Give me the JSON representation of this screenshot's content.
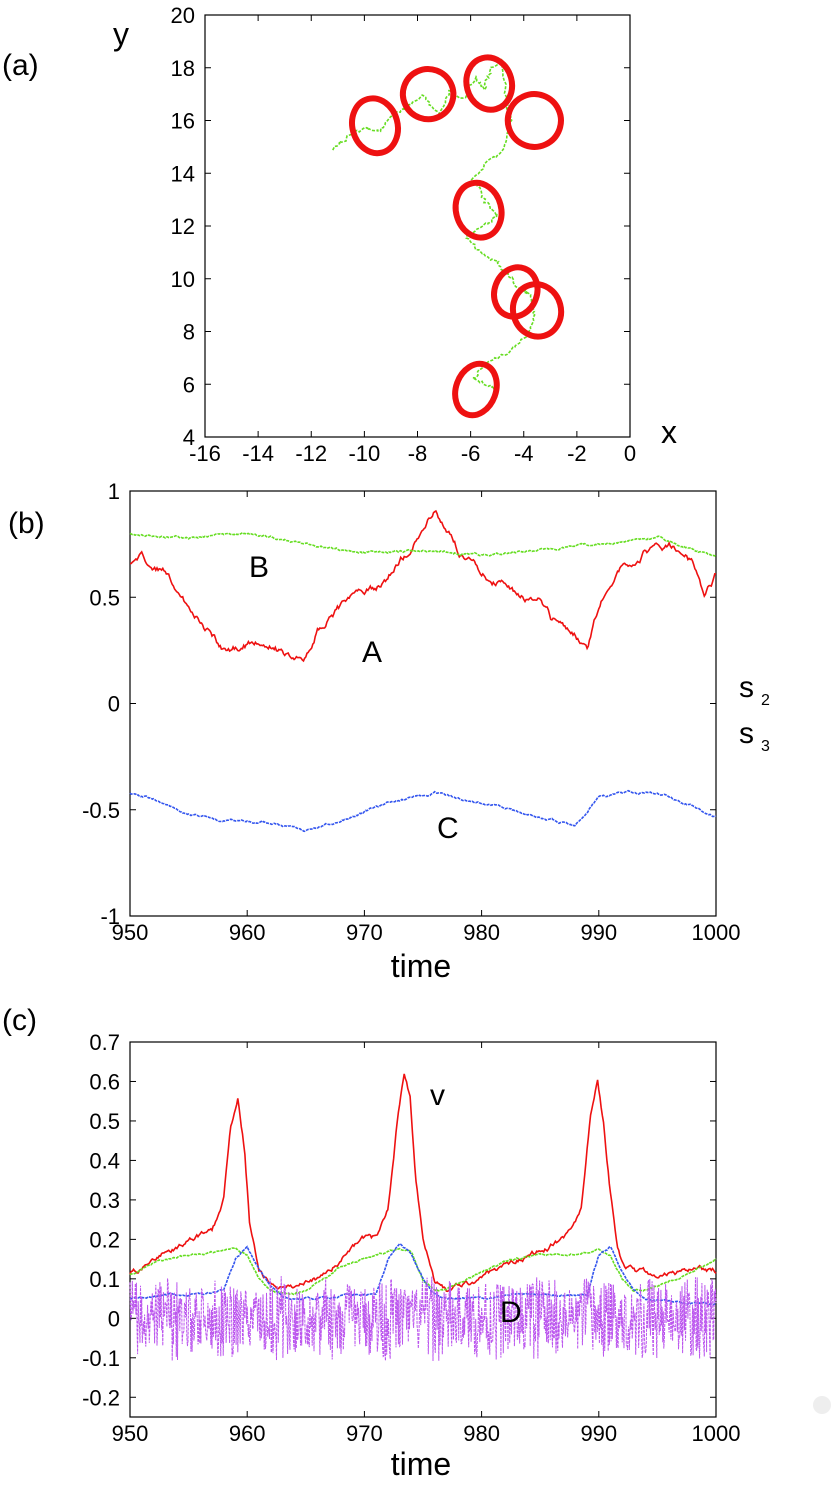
{
  "chart_data": [
    {
      "panel": "(a)",
      "type": "scatter",
      "xlabel": "x",
      "ylabel": "y",
      "xlim": [
        -16,
        0
      ],
      "ylim": [
        4,
        20
      ],
      "xticks": [
        "-16",
        "-14",
        "-12",
        "-10",
        "-8",
        "-6",
        "-4",
        "-2",
        "0"
      ],
      "yticks": [
        "4",
        "6",
        "8",
        "10",
        "12",
        "14",
        "16",
        "18",
        "20"
      ],
      "colors": {
        "loops": "#ee1111",
        "trajectory": "#66dd22"
      },
      "loops": [
        {
          "cx": -9.6,
          "cy": 15.8,
          "rx": 0.85,
          "ry": 1.05
        },
        {
          "cx": -7.6,
          "cy": 17.0,
          "rx": 0.95,
          "ry": 0.95
        },
        {
          "cx": -5.3,
          "cy": 17.4,
          "rx": 0.85,
          "ry": 1.0
        },
        {
          "cx": -3.6,
          "cy": 16.0,
          "rx": 1.0,
          "ry": 1.0
        },
        {
          "cx": -5.7,
          "cy": 12.6,
          "rx": 0.85,
          "ry": 1.05
        },
        {
          "cx": -4.3,
          "cy": 9.5,
          "rx": 0.8,
          "ry": 0.95
        },
        {
          "cx": -3.5,
          "cy": 8.8,
          "rx": 0.9,
          "ry": 1.0
        },
        {
          "cx": -5.8,
          "cy": 5.8,
          "rx": 0.75,
          "ry": 1.0
        }
      ],
      "trajectory": {
        "x": [
          -11.2,
          -10.6,
          -10.0,
          -9.4,
          -9.0,
          -8.4,
          -7.8,
          -7.2,
          -6.8,
          -6.3,
          -5.8,
          -5.5,
          -5.2,
          -4.8,
          -4.7,
          -4.5,
          -4.8,
          -5.4,
          -5.9,
          -5.5,
          -5.0,
          -5.5,
          -6.2,
          -5.6,
          -5.0,
          -4.6,
          -4.2,
          -3.8,
          -3.6,
          -3.9,
          -4.6,
          -5.4,
          -5.9,
          -5.2,
          -4.9
        ],
        "y": [
          14.9,
          15.4,
          15.7,
          15.6,
          16.2,
          16.5,
          17.0,
          16.2,
          17.1,
          16.8,
          17.6,
          17.2,
          18.0,
          18.4,
          17.0,
          16.0,
          14.9,
          14.4,
          13.8,
          13.0,
          12.4,
          12.0,
          11.6,
          11.0,
          10.6,
          10.2,
          9.7,
          9.4,
          8.6,
          7.8,
          7.2,
          6.8,
          6.2,
          5.9,
          5.8
        ]
      }
    },
    {
      "panel": "(b)",
      "type": "line",
      "xlabel": "time",
      "ylabel": "",
      "xlim": [
        950,
        1000
      ],
      "ylim": [
        -1,
        1
      ],
      "xticks": [
        "950",
        "960",
        "970",
        "980",
        "990",
        "1000"
      ],
      "yticks": [
        "-1",
        "-0.5",
        "0",
        "0.5",
        "1"
      ],
      "series": [
        {
          "name": "A",
          "color": "#ee1111",
          "x": [
            950,
            951,
            953,
            955,
            957,
            958,
            960,
            962,
            964,
            965,
            966,
            968,
            970,
            971,
            972,
            973,
            974,
            975,
            976,
            977,
            978,
            980,
            982,
            984,
            985,
            986,
            987,
            988,
            989,
            990,
            991,
            992,
            994,
            996,
            998,
            999,
            1000
          ],
          "y": [
            0.65,
            0.7,
            0.62,
            0.45,
            0.33,
            0.25,
            0.28,
            0.28,
            0.2,
            0.22,
            0.35,
            0.45,
            0.52,
            0.55,
            0.6,
            0.68,
            0.72,
            0.8,
            0.9,
            0.82,
            0.72,
            0.62,
            0.55,
            0.48,
            0.5,
            0.4,
            0.38,
            0.33,
            0.25,
            0.45,
            0.58,
            0.65,
            0.72,
            0.74,
            0.66,
            0.52,
            0.6
          ],
          "noise": 0.025
        },
        {
          "name": "B",
          "color": "#66dd22",
          "x": [
            950,
            955,
            960,
            965,
            970,
            975,
            980,
            985,
            990,
            995,
            1000
          ],
          "y": [
            0.8,
            0.78,
            0.8,
            0.75,
            0.71,
            0.72,
            0.7,
            0.72,
            0.75,
            0.78,
            0.69
          ],
          "noise": 0.008
        },
        {
          "name": "C",
          "color": "#3355ee",
          "x": [
            950,
            952,
            955,
            958,
            962,
            965,
            968,
            972,
            976,
            980,
            984,
            988,
            990,
            992,
            995,
            998,
            1000
          ],
          "y": [
            -0.42,
            -0.45,
            -0.52,
            -0.55,
            -0.56,
            -0.6,
            -0.55,
            -0.47,
            -0.42,
            -0.47,
            -0.52,
            -0.58,
            -0.44,
            -0.42,
            -0.42,
            -0.48,
            -0.53
          ],
          "noise": 0.008
        }
      ],
      "curve_labels": [
        "A",
        "B",
        "C"
      ]
    },
    {
      "panel": "(c)",
      "type": "line",
      "xlabel": "time",
      "ylabel": "",
      "xlim": [
        950,
        1000
      ],
      "ylim": [
        -0.25,
        0.7
      ],
      "xticks": [
        "950",
        "960",
        "970",
        "980",
        "990",
        "1000"
      ],
      "yticks": [
        "-0.2",
        "-0.1",
        "0",
        "0.1",
        "0.2",
        "0.3",
        "0.4",
        "0.5",
        "0.6",
        "0.7"
      ],
      "series": [
        {
          "name": "v",
          "color": "#ee1111",
          "x": [
            950,
            951,
            953,
            955,
            957,
            958,
            958.6,
            959.2,
            959.8,
            960.2,
            961,
            962,
            964,
            966,
            968,
            970,
            971,
            972,
            972.8,
            973.4,
            973.9,
            974.4,
            975,
            976,
            977,
            979,
            981,
            983,
            985,
            987,
            988.5,
            989.3,
            989.9,
            990.4,
            991,
            991.6,
            992.2,
            994,
            996,
            998,
            1000
          ],
          "y": [
            0.11,
            0.13,
            0.17,
            0.2,
            0.22,
            0.3,
            0.48,
            0.55,
            0.42,
            0.25,
            0.13,
            0.09,
            0.08,
            0.1,
            0.15,
            0.2,
            0.2,
            0.27,
            0.5,
            0.62,
            0.56,
            0.35,
            0.2,
            0.1,
            0.07,
            0.09,
            0.12,
            0.15,
            0.17,
            0.2,
            0.27,
            0.52,
            0.6,
            0.5,
            0.32,
            0.18,
            0.12,
            0.11,
            0.11,
            0.12,
            0.12
          ],
          "noise": 0.01
        },
        {
          "name": "s_2",
          "color": "#66dd22",
          "x": [
            950,
            952,
            955,
            958,
            959,
            960,
            961,
            962,
            964,
            966,
            968,
            971,
            972,
            973,
            974,
            975,
            976,
            977,
            980,
            983,
            986,
            989,
            990,
            991,
            992,
            993,
            995,
            998,
            1000
          ],
          "y": [
            0.11,
            0.14,
            0.16,
            0.17,
            0.18,
            0.16,
            0.1,
            0.07,
            0.06,
            0.09,
            0.13,
            0.16,
            0.17,
            0.18,
            0.17,
            0.1,
            0.07,
            0.07,
            0.12,
            0.15,
            0.16,
            0.17,
            0.18,
            0.16,
            0.1,
            0.07,
            0.08,
            0.12,
            0.15
          ],
          "noise": 0.004
        },
        {
          "name": "s_3",
          "color": "#3355ee",
          "x": [
            950,
            953,
            956,
            958,
            959,
            960,
            961,
            962,
            963,
            966,
            969,
            971,
            972,
            973,
            974,
            975,
            976,
            977,
            980,
            983,
            986,
            989,
            990,
            991,
            992,
            993,
            994,
            997,
            1000
          ],
          "y": [
            0.05,
            0.06,
            0.06,
            0.07,
            0.15,
            0.18,
            0.13,
            0.08,
            0.05,
            0.05,
            0.06,
            0.06,
            0.15,
            0.19,
            0.16,
            0.1,
            0.06,
            0.05,
            0.05,
            0.06,
            0.06,
            0.06,
            0.16,
            0.18,
            0.12,
            0.07,
            0.05,
            0.04,
            0.04
          ],
          "noise": 0.004
        },
        {
          "name": "D",
          "color": "#bb55ee",
          "x": [
            950,
            958,
            960,
            972,
            974,
            988,
            989.5,
            991,
            1000
          ],
          "y": [
            0,
            0,
            0,
            0,
            0,
            0,
            0,
            0,
            0
          ],
          "noise": 0.1
        }
      ],
      "curve_labels": [
        "v",
        "D"
      ],
      "s2_label": "s",
      "s2_sub": "2",
      "s3_label": "s",
      "s3_sub": "3"
    }
  ]
}
